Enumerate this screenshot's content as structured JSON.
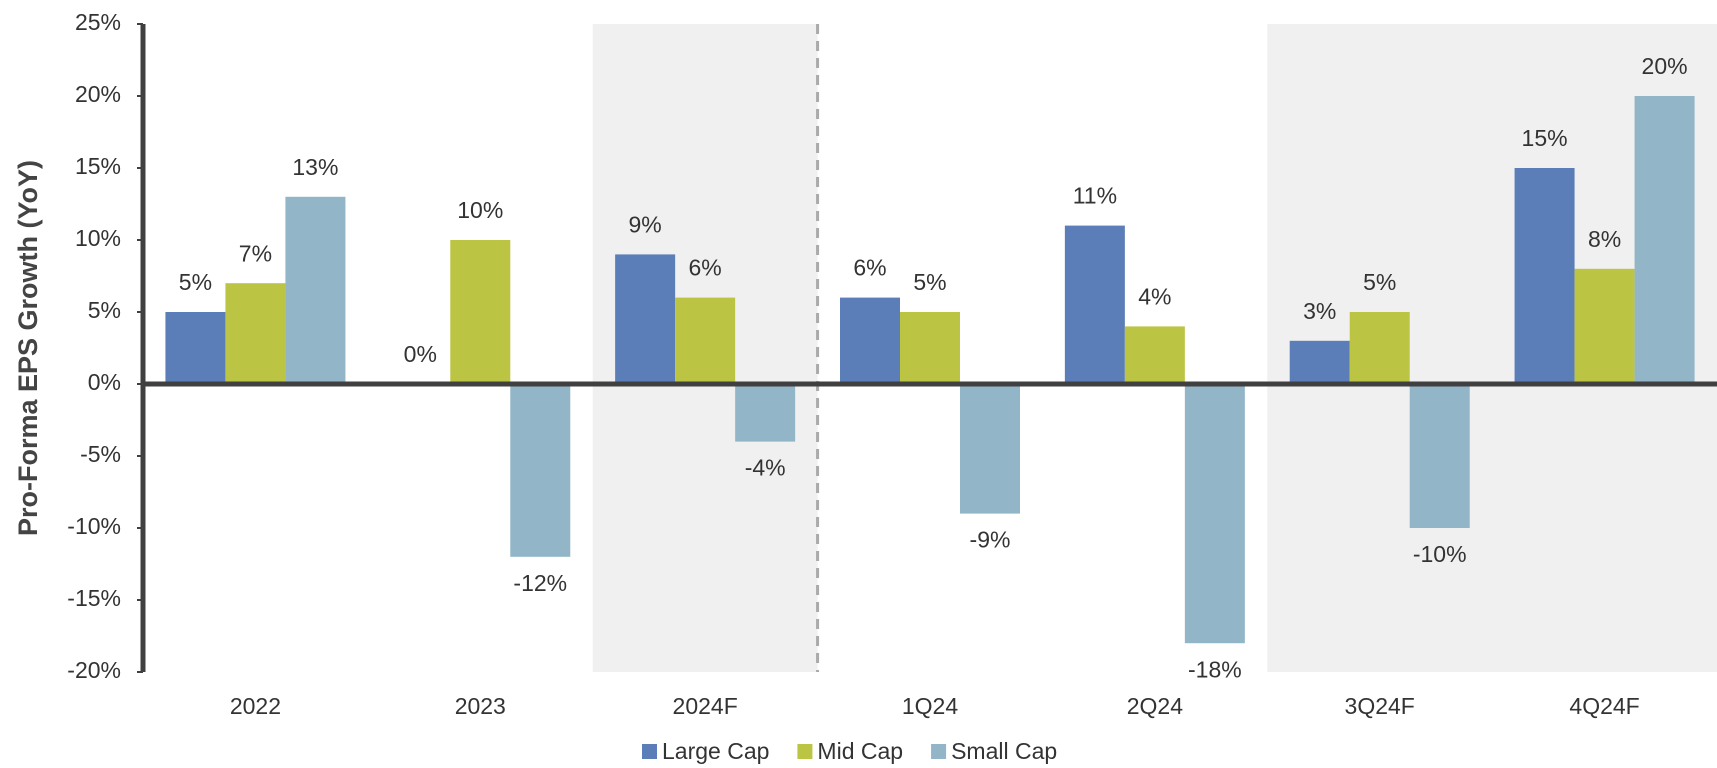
{
  "chart_data": {
    "type": "bar",
    "y_label": "Pro-Forma EPS Growth (YoY)",
    "categories": [
      "2022",
      "2023",
      "2024F",
      "1Q24",
      "2Q24",
      "3Q24F",
      "4Q24F"
    ],
    "series": [
      {
        "name": "Large Cap",
        "color": "#5b7db8",
        "values": [
          5,
          0,
          9,
          6,
          11,
          3,
          15
        ],
        "value_labels": [
          "5%",
          "0%",
          "9%",
          "6%",
          "11%",
          "3%",
          "15%"
        ]
      },
      {
        "name": "Mid Cap",
        "color": "#bcc444",
        "values": [
          7,
          10,
          6,
          5,
          4,
          5,
          8
        ],
        "value_labels": [
          "7%",
          "10%",
          "6%",
          "5%",
          "4%",
          "5%",
          "8%"
        ]
      },
      {
        "name": "Small Cap",
        "color": "#92b5c8",
        "values": [
          13,
          -12,
          -4,
          -9,
          -18,
          -10,
          20
        ],
        "value_labels": [
          "13%",
          "-12%",
          "-4%",
          "-9%",
          "-18%",
          "-10%",
          "20%"
        ]
      }
    ],
    "ylim": [
      -20,
      25
    ],
    "yticks": [
      {
        "value": -20,
        "label": "-20%"
      },
      {
        "value": -15,
        "label": "-15%"
      },
      {
        "value": -10,
        "label": "-10%"
      },
      {
        "value": -5,
        "label": "-5%"
      },
      {
        "value": 0,
        "label": "0%"
      },
      {
        "value": 5,
        "label": "5%"
      },
      {
        "value": 10,
        "label": "10%"
      },
      {
        "value": 15,
        "label": "15%"
      },
      {
        "value": 20,
        "label": "20%"
      },
      {
        "value": 25,
        "label": "25%"
      }
    ],
    "legend": "bottom"
  }
}
